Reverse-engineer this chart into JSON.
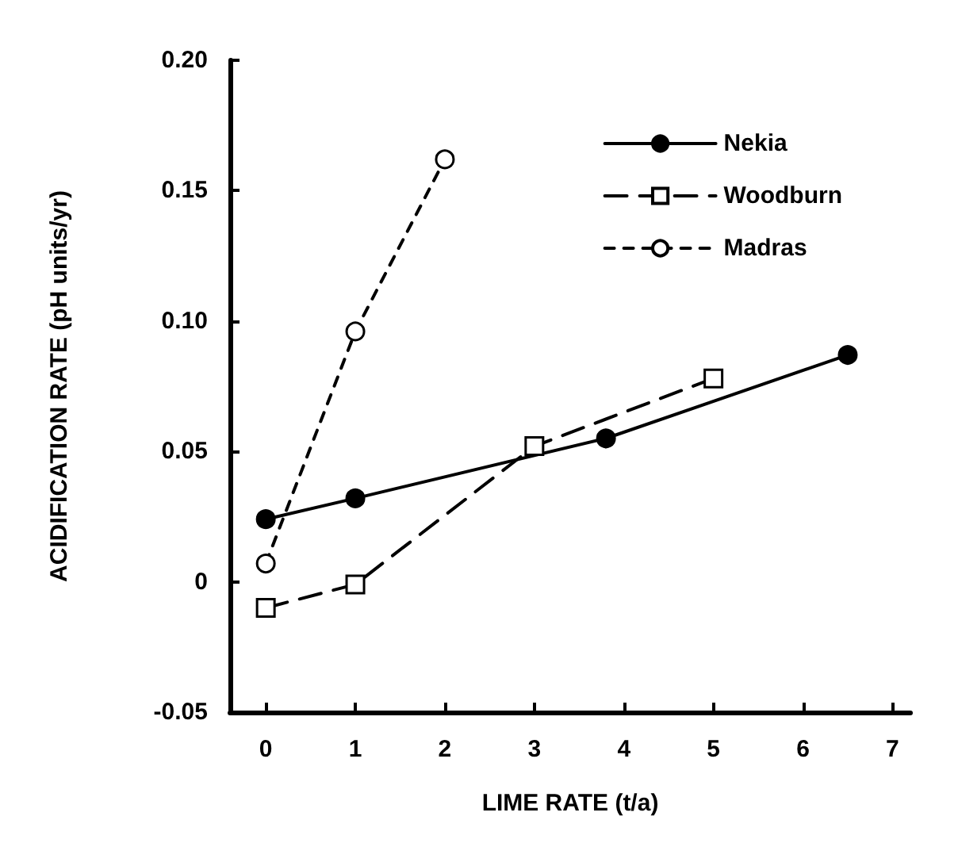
{
  "chart_data": {
    "type": "line",
    "xlabel": "LIME RATE (t/a)",
    "ylabel": "ACIDIFICATION RATE (pH units/yr)",
    "xlim": [
      -0.4,
      7.2
    ],
    "xticks": [
      0,
      1,
      2,
      3,
      4,
      5,
      6,
      7
    ],
    "ylim": [
      -0.05,
      0.2
    ],
    "yticks": [
      {
        "value": -0.05,
        "label": "-0.05"
      },
      0,
      {
        "value": 0.05,
        "label": "0.05"
      },
      {
        "value": 0.1,
        "label": "0.10"
      },
      {
        "value": 0.15,
        "label": "0.15"
      },
      {
        "value": 0.2,
        "label": "0.20"
      }
    ],
    "grid": false,
    "legend": "top right",
    "series": [
      {
        "name": "Nekia",
        "color": "#000000",
        "marker": "circle",
        "line_style": "solid",
        "x": [
          0,
          1,
          3.8,
          6.5
        ],
        "values": [
          0.024,
          0.032,
          0.055,
          0.087
        ]
      },
      {
        "name": "Woodburn",
        "color": "#000000",
        "marker": "square",
        "line_style": "dashed",
        "x": [
          0,
          1,
          3,
          5
        ],
        "values": [
          -0.01,
          -0.001,
          0.052,
          0.078
        ]
      },
      {
        "name": "Madras",
        "color": "#000000",
        "marker": "circle",
        "line_style": "dotted",
        "x": [
          0,
          1,
          2
        ],
        "values": [
          0.007,
          0.096,
          0.162
        ]
      }
    ]
  }
}
